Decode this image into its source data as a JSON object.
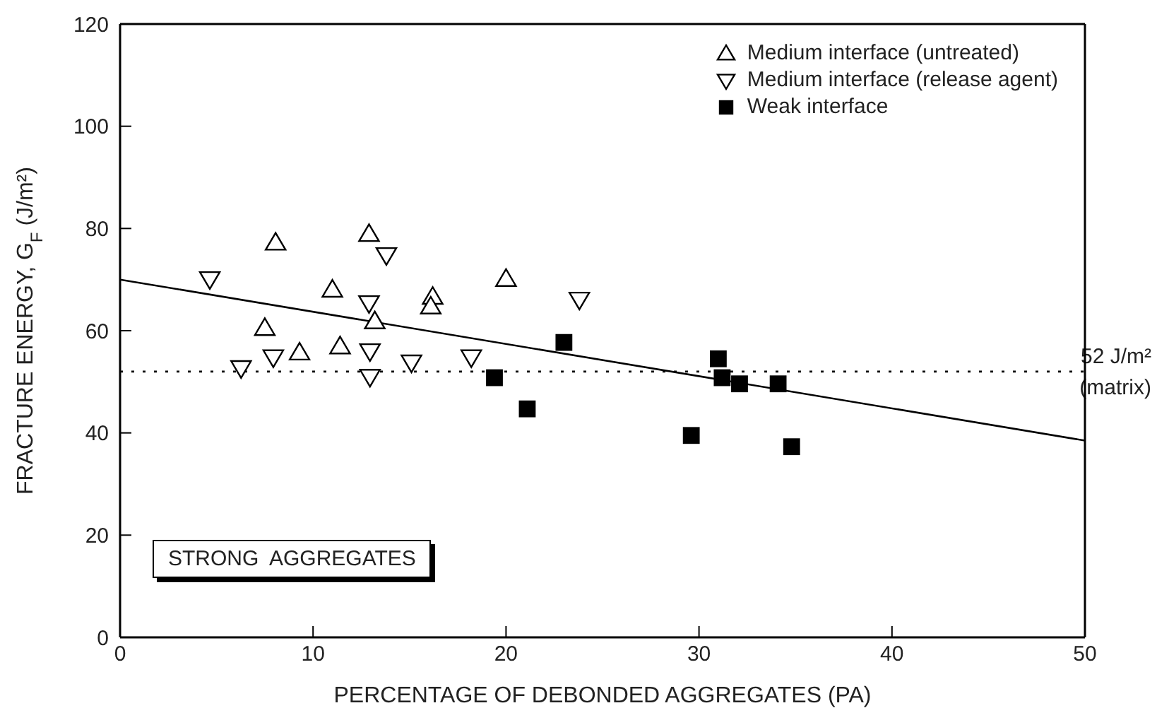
{
  "chart_data": {
    "type": "scatter",
    "xlabel": "PERCENTAGE OF DEBONDED AGGREGATES (PA)",
    "ylabel": "FRACTURE ENERGY, G$_{F}$ (J/m²)",
    "xlim": [
      0,
      50
    ],
    "xticks": [
      0,
      10,
      20,
      30,
      40,
      50
    ],
    "ylim": [
      0,
      120
    ],
    "yticks": [
      0,
      20,
      40,
      60,
      80,
      100,
      120
    ],
    "grid": false,
    "legend": "top right",
    "series": [
      {
        "name": "Medium interface (untreated)",
        "type": "scatter",
        "marker": "triangle",
        "color": "#000000",
        "x": [
          8.06,
          12.9,
          11.0,
          7.5,
          9.3,
          11.4,
          13.2,
          16.2,
          16.1,
          20.0
        ],
        "values": [
          77.2,
          78.9,
          68.0,
          60.5,
          55.7,
          56.9,
          61.8,
          66.6,
          64.7,
          70.1
        ]
      },
      {
        "name": "Medium interface (release agent)",
        "type": "scatter",
        "marker": "triangle-down",
        "color": "#000000",
        "x": [
          4.65,
          13.8,
          12.9,
          6.27,
          7.94,
          12.95,
          12.95,
          15.1,
          18.2,
          23.8
        ],
        "values": [
          70.1,
          74.8,
          65.4,
          52.7,
          54.8,
          56.0,
          51.0,
          53.8,
          54.8,
          66.1
        ]
      },
      {
        "name": "Weak interface",
        "type": "scatter",
        "marker": "square",
        "color": "#000000",
        "x": [
          19.4,
          21.1,
          23.0,
          29.6,
          31.0,
          31.2,
          32.1,
          34.1,
          34.8
        ],
        "values": [
          50.8,
          44.7,
          57.7,
          39.5,
          54.5,
          50.8,
          49.6,
          49.6,
          37.3
        ]
      },
      {
        "type": "line",
        "color": "#000000",
        "line_style": "solid",
        "x": [
          0,
          50
        ],
        "values": [
          70,
          38.5
        ]
      }
    ],
    "ref_lines": [
      {
        "axis": "y",
        "value": 52,
        "label": "52 J/m²\n(matrix)",
        "color": "#000000",
        "line_style": "dotted"
      }
    ],
    "annotations": [
      "STRONG AGGREGATES"
    ]
  }
}
